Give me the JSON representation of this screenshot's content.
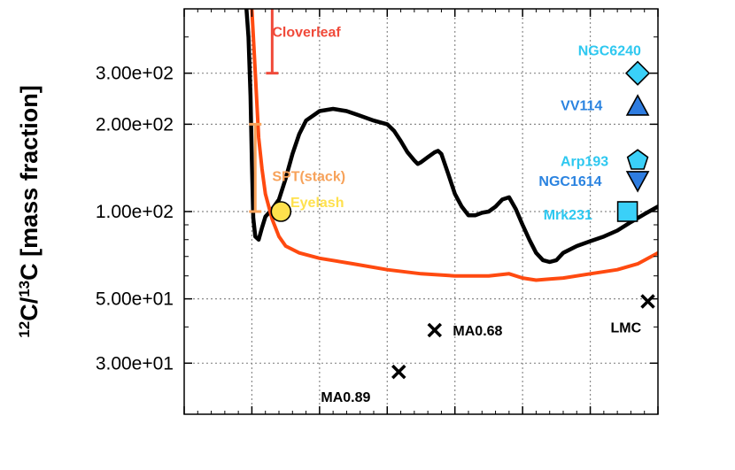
{
  "chart_data": {
    "type": "line",
    "ylabel": {
      "pre": "12",
      "a": "C/",
      "mid": "13",
      "b": "C [mass fraction]"
    },
    "yscale": "log",
    "ylim": [
      20,
      500
    ],
    "xlim": [
      0,
      7
    ],
    "grid": true,
    "ytick_values": [
      30,
      50,
      100,
      200,
      300
    ],
    "ytick_labels": [
      "3.00e+01",
      "5.00e+01",
      "1.00e+02",
      "2.00e+02",
      "3.00e+02"
    ],
    "colors": {
      "black_line": "#000000",
      "red_line": "#ff4a10",
      "cloverleaf": "#f04a3a",
      "spt": "#f7a25a",
      "eyelash": "#ffe14d",
      "cyan_label": "#2ec8f0",
      "blue_label": "#2a83e0",
      "cyan_marker": "#3ad0f8",
      "blue_marker": "#2e7ce0"
    },
    "series": [
      {
        "color": "#000000",
        "points": [
          [
            0.92,
            500
          ],
          [
            0.95,
            400
          ],
          [
            0.98,
            250
          ],
          [
            1.0,
            150
          ],
          [
            1.02,
            95
          ],
          [
            1.05,
            82
          ],
          [
            1.1,
            80
          ],
          [
            1.15,
            88
          ],
          [
            1.2,
            96
          ],
          [
            1.3,
            102
          ],
          [
            1.4,
            110
          ],
          [
            1.5,
            130
          ],
          [
            1.6,
            158
          ],
          [
            1.7,
            185
          ],
          [
            1.8,
            206
          ],
          [
            2.0,
            222
          ],
          [
            2.2,
            226
          ],
          [
            2.4,
            222
          ],
          [
            2.6,
            214
          ],
          [
            2.8,
            206
          ],
          [
            2.9,
            203
          ],
          [
            3.0,
            200
          ],
          [
            3.1,
            190
          ],
          [
            3.2,
            175
          ],
          [
            3.3,
            160
          ],
          [
            3.4,
            150
          ],
          [
            3.45,
            146
          ],
          [
            3.5,
            148
          ],
          [
            3.6,
            154
          ],
          [
            3.7,
            160
          ],
          [
            3.75,
            162
          ],
          [
            3.8,
            158
          ],
          [
            3.9,
            135
          ],
          [
            4.0,
            115
          ],
          [
            4.1,
            104
          ],
          [
            4.2,
            97
          ],
          [
            4.3,
            97
          ],
          [
            4.4,
            99
          ],
          [
            4.5,
            100
          ],
          [
            4.6,
            104
          ],
          [
            4.7,
            110
          ],
          [
            4.8,
            112
          ],
          [
            4.9,
            102
          ],
          [
            5.0,
            90
          ],
          [
            5.1,
            80
          ],
          [
            5.2,
            72
          ],
          [
            5.3,
            68
          ],
          [
            5.4,
            67
          ],
          [
            5.5,
            68
          ],
          [
            5.6,
            72
          ],
          [
            5.8,
            76
          ],
          [
            6.0,
            79
          ],
          [
            6.2,
            82
          ],
          [
            6.4,
            86
          ],
          [
            6.6,
            92
          ],
          [
            6.8,
            98
          ],
          [
            7.0,
            104
          ]
        ]
      },
      {
        "color": "#ff4a10",
        "points": [
          [
            1.0,
            500
          ],
          [
            1.05,
            300
          ],
          [
            1.1,
            180
          ],
          [
            1.15,
            140
          ],
          [
            1.2,
            115
          ],
          [
            1.3,
            94
          ],
          [
            1.4,
            82
          ],
          [
            1.5,
            76
          ],
          [
            1.7,
            72
          ],
          [
            2.0,
            69
          ],
          [
            2.5,
            66
          ],
          [
            3.0,
            63
          ],
          [
            3.5,
            61
          ],
          [
            4.0,
            60
          ],
          [
            4.5,
            60
          ],
          [
            4.8,
            61
          ],
          [
            5.0,
            59
          ],
          [
            5.2,
            58
          ],
          [
            5.4,
            58.5
          ],
          [
            5.6,
            59
          ],
          [
            6.0,
            61
          ],
          [
            6.4,
            63
          ],
          [
            6.7,
            66
          ],
          [
            7.0,
            72
          ]
        ]
      }
    ],
    "annotations": [
      {
        "label": "Cloverleaf",
        "x": 1.3,
        "y": 418,
        "color": "#f04a3a",
        "anchor": "start"
      },
      {
        "label": "NGC6240",
        "x": 6.75,
        "y": 360,
        "color": "#2ec8f0",
        "anchor": "end"
      },
      {
        "label": "VV114",
        "x": 6.18,
        "y": 233,
        "color": "#2a83e0",
        "anchor": "end"
      },
      {
        "label": "Arp193",
        "x": 6.27,
        "y": 150,
        "color": "#2ec8f0",
        "anchor": "end"
      },
      {
        "label": "SPT(stack)",
        "x": 1.3,
        "y": 133,
        "color": "#f7a25a",
        "anchor": "start"
      },
      {
        "label": "NGC1614",
        "x": 6.17,
        "y": 128,
        "color": "#2a83e0",
        "anchor": "end"
      },
      {
        "label": "Eyelash",
        "x": 1.57,
        "y": 108,
        "color": "#ffe14d",
        "anchor": "start"
      },
      {
        "label": "Mrk231",
        "x": 6.03,
        "y": 98,
        "color": "#2ec8f0",
        "anchor": "end"
      },
      {
        "label": "LMC",
        "x": 6.3,
        "y": 40,
        "color": "#000000",
        "anchor": "start"
      },
      {
        "label": "MA0.68",
        "x": 3.97,
        "y": 39,
        "color": "#000000",
        "anchor": "start"
      },
      {
        "label": "MA0.89",
        "x": 2.02,
        "y": 23,
        "color": "#000000",
        "anchor": "start"
      }
    ],
    "error_bars": [
      {
        "name": "Cloverleaf",
        "x": 1.3,
        "ylow": 300,
        "yhigh": 500,
        "color": "#f04a3a",
        "ycap": 300
      },
      {
        "name": "SPT(stack)",
        "x": 1.05,
        "ylow": 100,
        "yhigh": 200,
        "color": "#f7a25a",
        "ycap": 200,
        "ycap2": 100
      }
    ],
    "markers": [
      {
        "name": "Eyelash",
        "x": 1.43,
        "y": 100,
        "shape": "circle",
        "color": "#ffe14d"
      },
      {
        "name": "NGC6240",
        "x": 6.7,
        "y": 300,
        "shape": "diamond",
        "color": "#3ad0f8"
      },
      {
        "name": "VV114",
        "x": 6.7,
        "y": 231,
        "shape": "triangle-up",
        "color": "#2e7ce0"
      },
      {
        "name": "Arp193",
        "x": 6.7,
        "y": 150,
        "shape": "pentagon",
        "color": "#3ad0f8"
      },
      {
        "name": "NGC1614",
        "x": 6.7,
        "y": 128,
        "shape": "triangle-down",
        "color": "#2e7ce0"
      },
      {
        "name": "Mrk231",
        "x": 6.55,
        "y": 100,
        "shape": "square",
        "color": "#3ad0f8"
      },
      {
        "name": "LMC",
        "x": 6.85,
        "y": 49,
        "shape": "cross",
        "color": "#000000"
      },
      {
        "name": "MA0.68",
        "x": 3.7,
        "y": 39,
        "shape": "cross",
        "color": "#000000"
      },
      {
        "name": "MA0.89",
        "x": 3.17,
        "y": 28,
        "shape": "cross",
        "color": "#000000"
      }
    ]
  }
}
